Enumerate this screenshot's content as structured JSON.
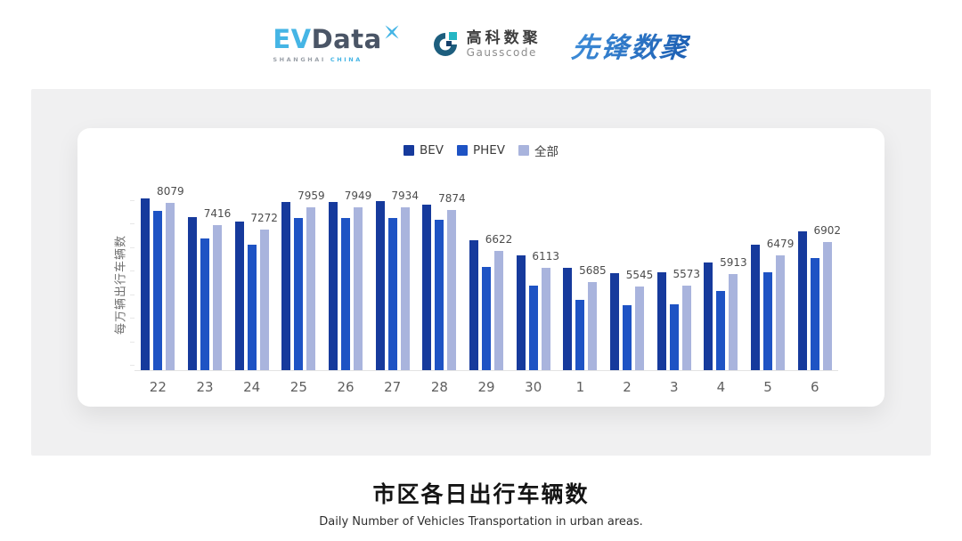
{
  "header": {
    "evdata": {
      "ev": "EV",
      "data": "Data",
      "sub_left": "SHANGHAI",
      "sub_right": "CHINA"
    },
    "gausscode": {
      "cn": "高科数聚",
      "en": "Gausscode"
    },
    "xianfeng": "先锋数聚"
  },
  "chart_data": {
    "type": "bar",
    "title": "市区各日出行车辆数",
    "subtitle": "Daily Number of Vehicles Transportation in urban areas.",
    "ylabel": "每万辆出行车辆数",
    "categories": [
      "22",
      "23",
      "24",
      "25",
      "26",
      "27",
      "28",
      "29",
      "30",
      "1",
      "2",
      "3",
      "4",
      "5",
      "6"
    ],
    "series": [
      {
        "name": "BEV",
        "key": "bev",
        "color": "#163a9c",
        "values": [
          8230,
          7655,
          7520,
          8115,
          8100,
          8140,
          8040,
          6950,
          6480,
          6110,
          5950,
          5975,
          6270,
          6815,
          7230
        ]
      },
      {
        "name": "PHEV",
        "key": "phev",
        "color": "#1e53c4",
        "values": [
          7850,
          7010,
          6800,
          7630,
          7630,
          7610,
          7565,
          6135,
          5560,
          5135,
          4975,
          5000,
          5400,
          5975,
          6395
        ]
      },
      {
        "name": "全部",
        "key": "all",
        "color": "#a9b4dd",
        "values": [
          8079,
          7416,
          7272,
          7959,
          7949,
          7934,
          7874,
          6622,
          6113,
          5685,
          5545,
          5573,
          5913,
          6479,
          6902
        ]
      }
    ],
    "data_labels": [
      "8079",
      "7416",
      "7272",
      "7959",
      "7949",
      "7934",
      "7874",
      "6622",
      "6113",
      "5685",
      "5545",
      "5573",
      "5913",
      "6479",
      "6902"
    ],
    "ylim": [
      3000,
      9000
    ],
    "legend_position": "top",
    "grid": false
  }
}
